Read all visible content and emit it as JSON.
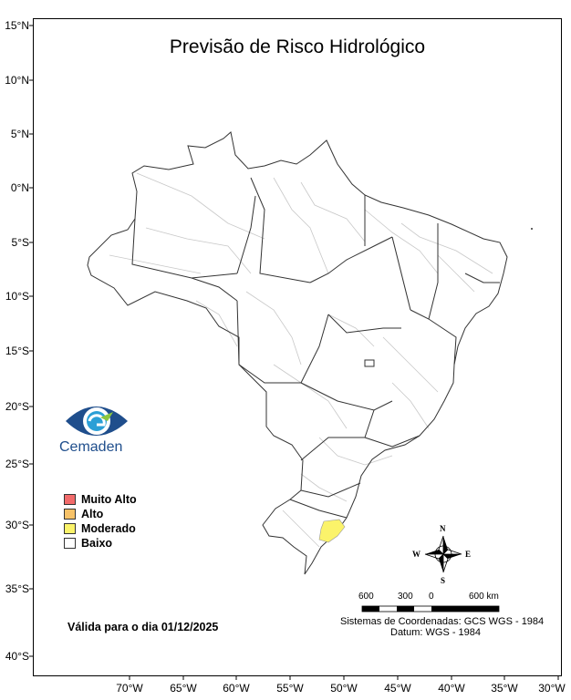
{
  "map": {
    "title": "Previsão de Risco Hidrológico",
    "valid_date": "Válida para o dia 01/12/2025",
    "logo_text": "Cemaden",
    "latitude_labels": [
      "15°N",
      "10°N",
      "5°N",
      "0°N",
      "5°S",
      "10°S",
      "15°S",
      "20°S",
      "25°S",
      "30°S",
      "35°S",
      "40°S"
    ],
    "longitude_labels": [
      "70°W",
      "65°W",
      "60°W",
      "55°W",
      "50°W",
      "45°W",
      "40°W",
      "35°W",
      "30°W"
    ],
    "legend": [
      {
        "label": "Muito Alto",
        "color": "#f26b6b"
      },
      {
        "label": "Alto",
        "color": "#f7c268"
      },
      {
        "label": "Moderado",
        "color": "#fbf36a"
      },
      {
        "label": "Baixo",
        "color": "#ffffff"
      }
    ],
    "scale_labels": [
      "600",
      "300",
      "0",
      "600 km"
    ],
    "coordinate_system": "Sistemas de Coordenadas: GCS WGS - 1984",
    "datum": "Datum: WGS - 1984",
    "compass": {
      "n": "N",
      "s": "S",
      "e": "E",
      "w": "W"
    },
    "colors": {
      "border": "#333333",
      "internal": "#bdbdbd",
      "highlight": "#fbf36a"
    }
  }
}
